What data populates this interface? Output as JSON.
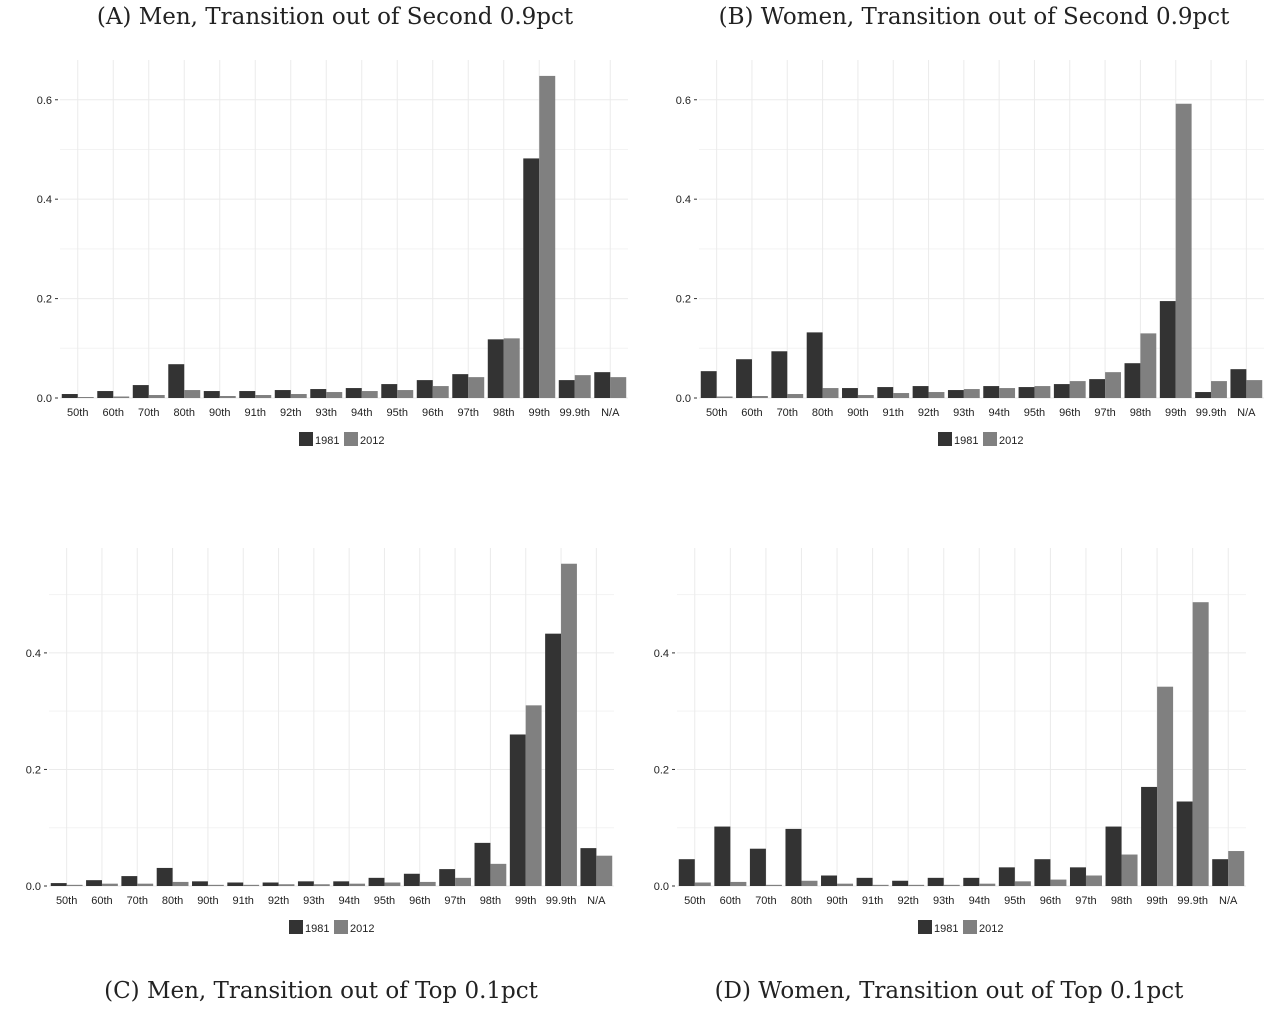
{
  "colors": {
    "y1981": "#333333",
    "y2012": "#808080"
  },
  "legend": [
    "1981",
    "2012"
  ],
  "captions": {
    "a": "(A) Men, Transition out of Second 0.9pct",
    "b": "(B) Women, Transition out of Second 0.9pct",
    "c": "(C) Men, Transition out of Top 0.1pct",
    "d": "(D) Women, Transition out of Top 0.1pct"
  },
  "chart_data": [
    {
      "type": "bar",
      "title": "(A) Men, Transition out of Second 0.9pct",
      "categories": [
        "50th",
        "60th",
        "70th",
        "80th",
        "90th",
        "91th",
        "92th",
        "93th",
        "94th",
        "95th",
        "96th",
        "97th",
        "98th",
        "99th",
        "99.9th",
        "N/A"
      ],
      "series": [
        {
          "name": "1981",
          "values": [
            0.008,
            0.014,
            0.026,
            0.068,
            0.014,
            0.014,
            0.016,
            0.018,
            0.02,
            0.028,
            0.036,
            0.048,
            0.118,
            0.482,
            0.036,
            0.052
          ]
        },
        {
          "name": "2012",
          "values": [
            0.002,
            0.003,
            0.006,
            0.016,
            0.004,
            0.006,
            0.008,
            0.012,
            0.014,
            0.016,
            0.024,
            0.042,
            0.12,
            0.648,
            0.046,
            0.042
          ]
        }
      ],
      "ylim": [
        0,
        0.68
      ],
      "yticks": [
        0.0,
        0.2,
        0.4,
        0.6
      ],
      "ytick_labels": [
        "0.0",
        "0.2",
        "0.4",
        "0.6"
      ],
      "legend_position": "bottom"
    },
    {
      "type": "bar",
      "title": "(B) Women, Transition out of Second 0.9pct",
      "categories": [
        "50th",
        "60th",
        "70th",
        "80th",
        "90th",
        "91th",
        "92th",
        "93th",
        "94th",
        "95th",
        "96th",
        "97th",
        "98th",
        "99th",
        "99.9th",
        "N/A"
      ],
      "series": [
        {
          "name": "1981",
          "values": [
            0.054,
            0.078,
            0.094,
            0.132,
            0.02,
            0.022,
            0.024,
            0.016,
            0.024,
            0.022,
            0.028,
            0.038,
            0.07,
            0.195,
            0.012,
            0.058
          ]
        },
        {
          "name": "2012",
          "values": [
            0.003,
            0.004,
            0.008,
            0.02,
            0.006,
            0.01,
            0.012,
            0.018,
            0.02,
            0.024,
            0.034,
            0.052,
            0.13,
            0.592,
            0.034,
            0.036
          ]
        }
      ],
      "ylim": [
        0,
        0.68
      ],
      "yticks": [
        0.0,
        0.2,
        0.4,
        0.6
      ],
      "ytick_labels": [
        "0.0",
        "0.2",
        "0.4",
        "0.6"
      ],
      "legend_position": "bottom"
    },
    {
      "type": "bar",
      "title": "(C) Men, Transition out of Top 0.1pct",
      "categories": [
        "50th",
        "60th",
        "70th",
        "80th",
        "90th",
        "91th",
        "92th",
        "93th",
        "94th",
        "95th",
        "96th",
        "97th",
        "98th",
        "99th",
        "99.9th",
        "N/A"
      ],
      "series": [
        {
          "name": "1981",
          "values": [
            0.005,
            0.01,
            0.017,
            0.031,
            0.008,
            0.006,
            0.006,
            0.008,
            0.008,
            0.014,
            0.021,
            0.029,
            0.074,
            0.26,
            0.433,
            0.065
          ]
        },
        {
          "name": "2012",
          "values": [
            0.002,
            0.004,
            0.004,
            0.007,
            0.002,
            0.002,
            0.003,
            0.003,
            0.004,
            0.006,
            0.007,
            0.014,
            0.038,
            0.31,
            0.553,
            0.052
          ]
        }
      ],
      "ylim": [
        0,
        0.58
      ],
      "yticks": [
        0.0,
        0.2,
        0.4
      ],
      "ytick_labels": [
        "0.0",
        "0.2",
        "0.4"
      ],
      "legend_position": "bottom"
    },
    {
      "type": "bar",
      "title": "(D) Women, Transition out of Top 0.1pct",
      "categories": [
        "50th",
        "60th",
        "70th",
        "80th",
        "90th",
        "91th",
        "92th",
        "93th",
        "94th",
        "95th",
        "96th",
        "97th",
        "98th",
        "99th",
        "99.9th",
        "N/A"
      ],
      "series": [
        {
          "name": "1981",
          "values": [
            0.046,
            0.102,
            0.064,
            0.098,
            0.018,
            0.014,
            0.009,
            0.014,
            0.014,
            0.032,
            0.046,
            0.032,
            0.102,
            0.17,
            0.145,
            0.046
          ]
        },
        {
          "name": "2012",
          "values": [
            0.006,
            0.007,
            0.002,
            0.009,
            0.004,
            0.002,
            0.002,
            0.002,
            0.004,
            0.008,
            0.011,
            0.018,
            0.054,
            0.342,
            0.487,
            0.06
          ]
        }
      ],
      "ylim": [
        0,
        0.58
      ],
      "yticks": [
        0.0,
        0.2,
        0.4
      ],
      "ytick_labels": [
        "0.0",
        "0.2",
        "0.4"
      ],
      "legend_position": "bottom"
    }
  ]
}
